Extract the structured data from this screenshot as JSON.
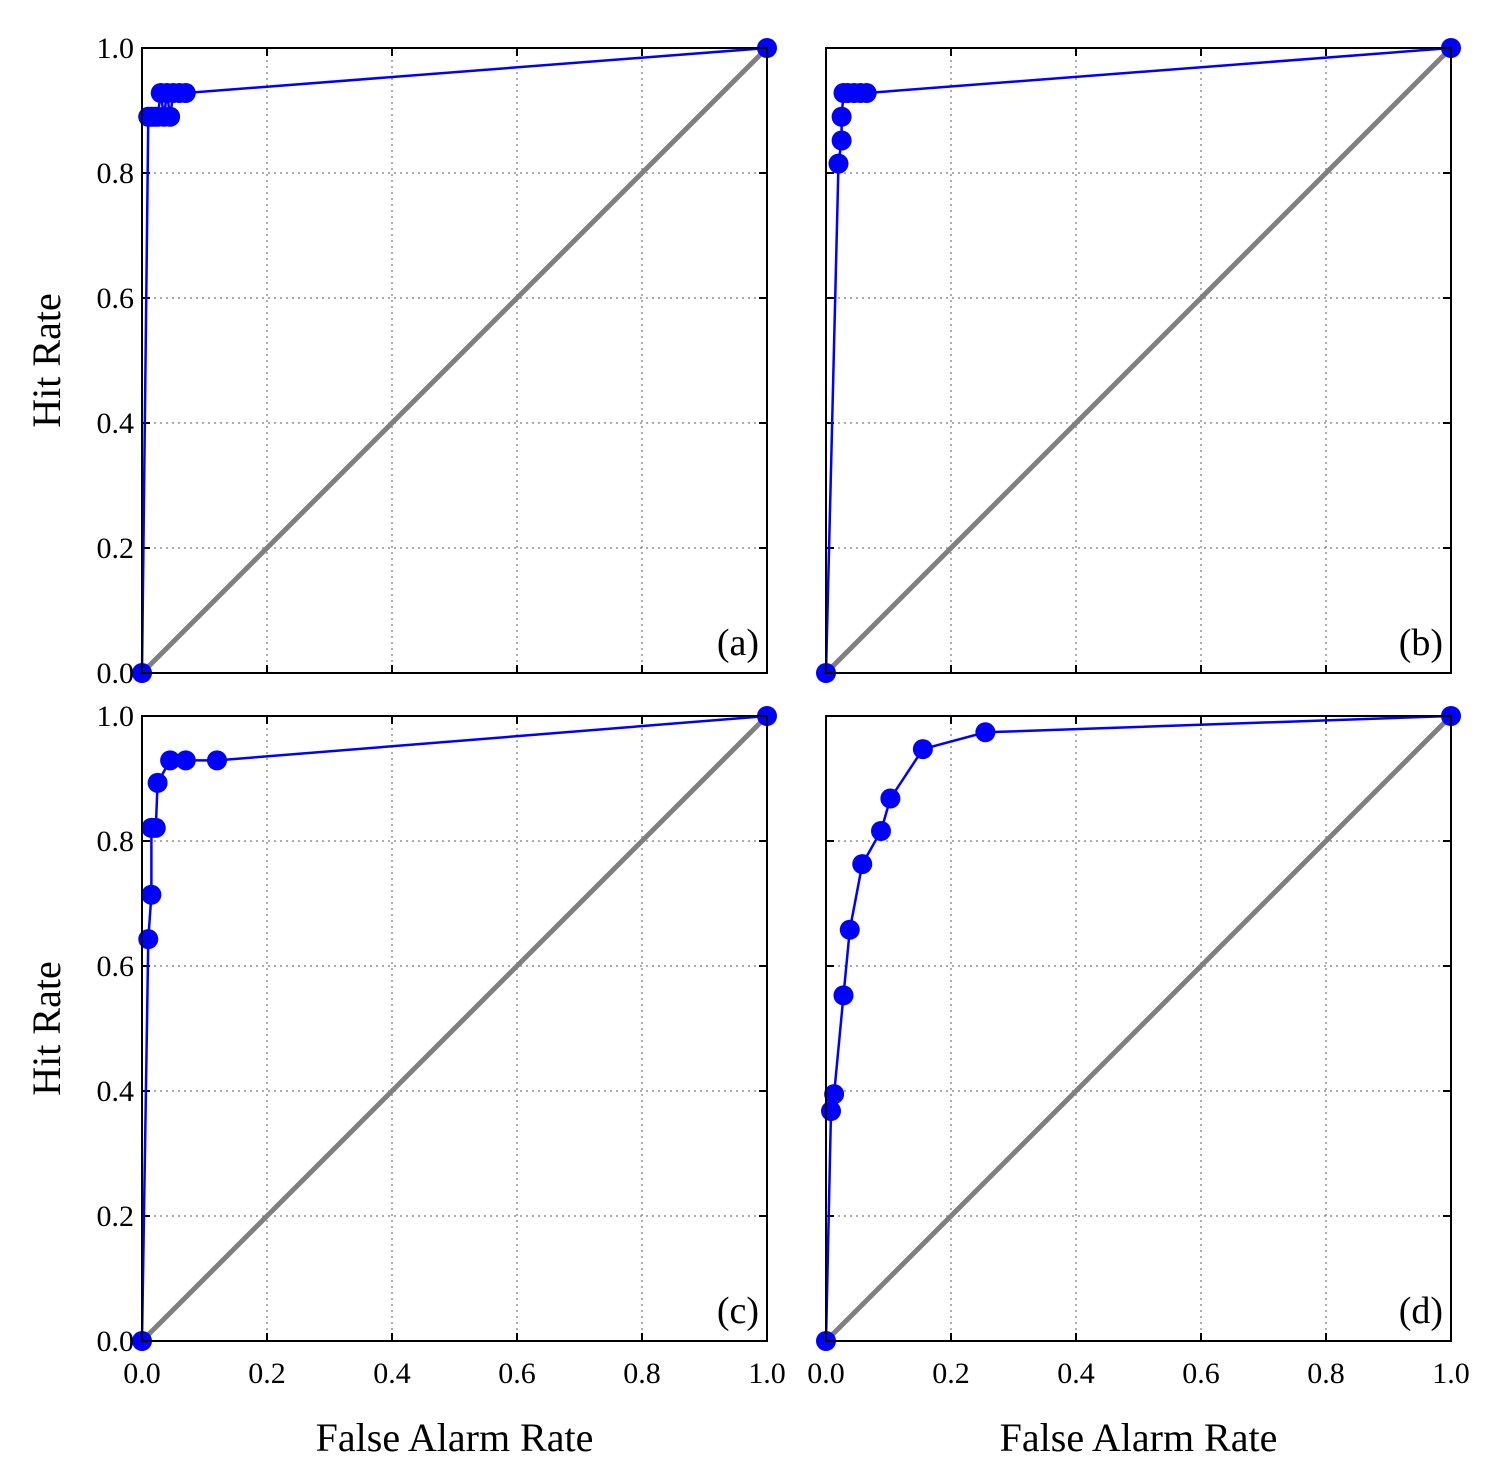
{
  "chart_data": [
    {
      "type": "line",
      "panel_label": "(a)",
      "xlabel": "",
      "ylabel": "Hit Rate",
      "xlim": [
        0,
        1
      ],
      "ylim": [
        0,
        1
      ],
      "xticks": [],
      "yticks": [
        "0.0",
        "0.2",
        "0.4",
        "0.6",
        "0.8",
        "1.0"
      ],
      "grid": true,
      "reference_line": "diagonal",
      "series": [
        {
          "x": [
            0.0,
            0.01,
            0.015,
            0.02,
            0.025,
            0.03,
            0.035,
            0.04,
            0.045,
            0.05,
            0.06,
            0.07,
            1.0
          ],
          "y": [
            0.0,
            0.89,
            0.89,
            0.89,
            0.89,
            0.928,
            0.89,
            0.928,
            0.89,
            0.928,
            0.928,
            0.928,
            1.0
          ]
        }
      ]
    },
    {
      "type": "line",
      "panel_label": "(b)",
      "xlabel": "",
      "ylabel": "",
      "xlim": [
        0,
        1
      ],
      "ylim": [
        0,
        1
      ],
      "xticks": [],
      "yticks": [],
      "grid": true,
      "reference_line": "diagonal",
      "series": [
        {
          "x": [
            0.0,
            0.02,
            0.025,
            0.025,
            0.028,
            0.035,
            0.045,
            0.055,
            0.065,
            1.0
          ],
          "y": [
            0.0,
            0.815,
            0.852,
            0.89,
            0.928,
            0.928,
            0.928,
            0.928,
            0.928,
            1.0
          ]
        }
      ]
    },
    {
      "type": "line",
      "panel_label": "(c)",
      "xlabel": "False Alarm Rate",
      "ylabel": "Hit Rate",
      "xlim": [
        0,
        1
      ],
      "ylim": [
        0,
        1
      ],
      "xticks": [
        "0.0",
        "0.2",
        "0.4",
        "0.6",
        "0.8",
        "1.0"
      ],
      "yticks": [
        "0.0",
        "0.2",
        "0.4",
        "0.6",
        "0.8",
        "1.0"
      ],
      "grid": true,
      "reference_line": "diagonal",
      "series": [
        {
          "x": [
            0.0,
            0.01,
            0.015,
            0.015,
            0.022,
            0.025,
            0.045,
            0.07,
            0.12,
            1.0
          ],
          "y": [
            0.0,
            0.643,
            0.714,
            0.821,
            0.821,
            0.893,
            0.929,
            0.929,
            0.929,
            1.0
          ]
        }
      ]
    },
    {
      "type": "line",
      "panel_label": "(d)",
      "xlabel": "False Alarm Rate",
      "ylabel": "",
      "xlim": [
        0,
        1
      ],
      "ylim": [
        0,
        1
      ],
      "xticks": [
        "0.0",
        "0.2",
        "0.4",
        "0.6",
        "0.8",
        "1.0"
      ],
      "yticks": [],
      "grid": true,
      "reference_line": "diagonal",
      "series": [
        {
          "x": [
            0.0,
            0.008,
            0.013,
            0.028,
            0.038,
            0.058,
            0.088,
            0.103,
            0.155,
            0.255,
            1.0
          ],
          "y": [
            0.0,
            0.368,
            0.395,
            0.553,
            0.658,
            0.763,
            0.816,
            0.868,
            0.947,
            0.974,
            1.0
          ]
        }
      ]
    }
  ]
}
